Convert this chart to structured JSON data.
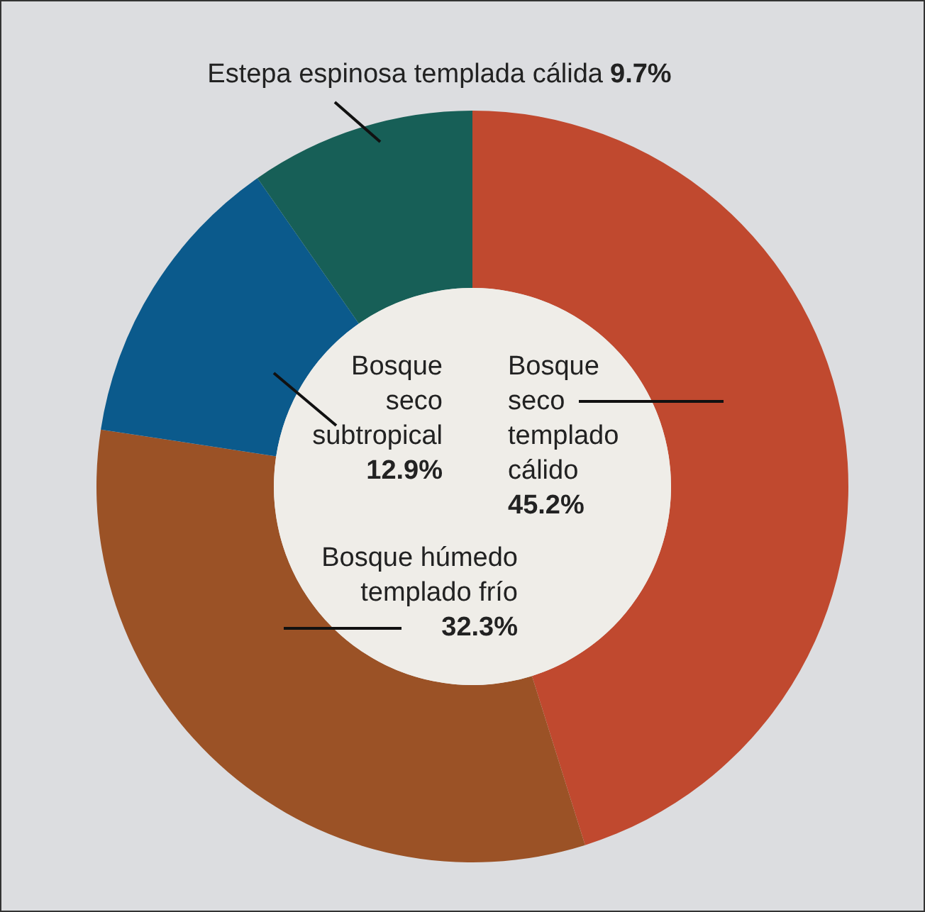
{
  "chart_data": {
    "type": "donut",
    "categories": [
      "Bosque seco templado cálido",
      "Bosque húmedo templado frío",
      "Bosque seco subtropical",
      "Estepa espinosa templada cálida"
    ],
    "values": [
      45.2,
      32.3,
      12.9,
      9.7
    ],
    "colors": [
      "#c0492f",
      "#9b5226",
      "#0b5a8c",
      "#175f57"
    ],
    "value_labels": [
      "45.2%",
      "32.3%",
      "12.9%",
      "9.7%"
    ]
  }
}
